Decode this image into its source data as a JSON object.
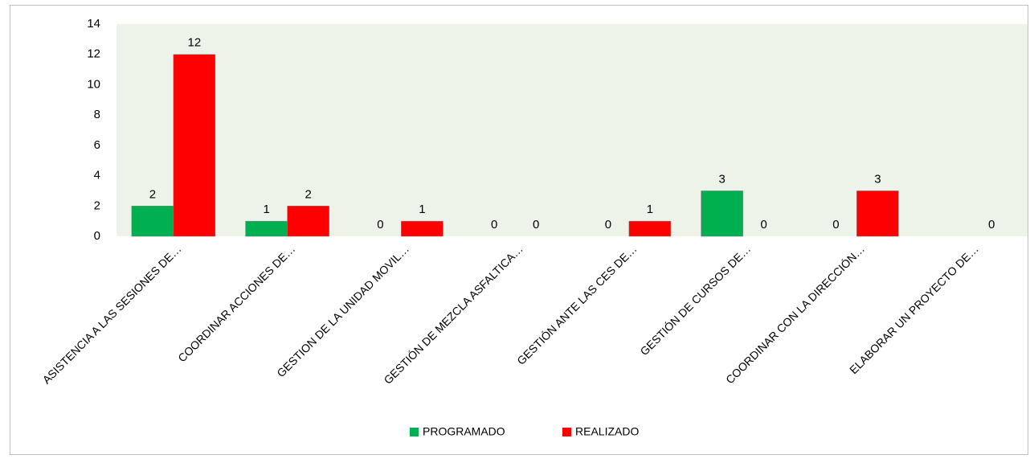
{
  "chart_data": {
    "type": "bar",
    "categories": [
      "ASISTENCIA A LAS SESIONES DE…",
      "COORDINAR ACCIONES DE…",
      "GESTION DE LA UNIDAD MOVIL…",
      "GESTIÓN DE MEZCLA ASFALTICA…",
      "GESTIÓN ANTE LAS CES DE…",
      "GESTIÓN DE CURSOS DE…",
      "COORDINAR CON LA DIRECCIÓN…",
      "ELABORAR UN PROYECTO DE…"
    ],
    "series": [
      {
        "name": "PROGRAMADO",
        "color": "#00b050",
        "values": [
          2,
          1,
          0,
          0,
          0,
          3,
          0,
          null
        ]
      },
      {
        "name": "REALIZADO",
        "color": "#ff0000",
        "values": [
          12,
          2,
          1,
          0,
          1,
          0,
          3,
          0
        ]
      }
    ],
    "ylim": [
      0,
      14
    ],
    "yticks": [
      0,
      2,
      4,
      6,
      8,
      10,
      12,
      14
    ],
    "grid": false,
    "legend": "bottom"
  }
}
